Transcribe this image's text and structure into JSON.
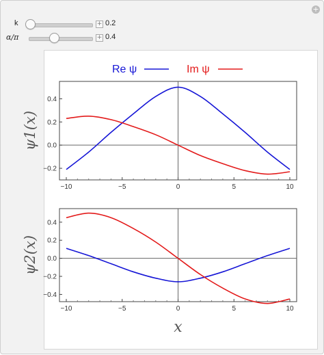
{
  "controls": [
    {
      "label": "k",
      "value": "0.2",
      "fraction": 0.0
    },
    {
      "label": "α/π",
      "value": "0.4",
      "fraction": 0.4
    }
  ],
  "legend": [
    {
      "label": "Re ψ",
      "color": "#1515d6"
    },
    {
      "label": "Im ψ",
      "color": "#e31a1a"
    }
  ],
  "colors": {
    "re": "#1515d6",
    "im": "#e31a1a",
    "axis": "#333333"
  },
  "chart_data": [
    {
      "type": "line",
      "ylabel": "ψ1(x)",
      "xlabel": "",
      "xlim": [
        -10,
        10
      ],
      "ylim": [
        -0.3,
        0.55
      ],
      "xticks": [
        "−10",
        "−5",
        "0",
        "5",
        "10"
      ],
      "yticks": [
        "−0.2",
        "0.0",
        "0.2",
        "0.4"
      ],
      "ytick_values": [
        -0.2,
        0.0,
        0.2,
        0.4
      ],
      "grid": false,
      "series": [
        {
          "name": "Re ψ",
          "x": [
            -10,
            -8,
            -6,
            -4,
            -2,
            0,
            2,
            4,
            6,
            8,
            10
          ],
          "values": [
            -0.21,
            -0.06,
            0.11,
            0.27,
            0.42,
            0.5,
            0.42,
            0.27,
            0.11,
            -0.06,
            -0.21
          ]
        },
        {
          "name": "Im ψ",
          "x": [
            -10,
            -8,
            -6,
            -4,
            -2,
            0,
            2,
            4,
            6,
            8,
            10
          ],
          "values": [
            0.23,
            0.25,
            0.22,
            0.16,
            0.09,
            0.0,
            -0.09,
            -0.16,
            -0.22,
            -0.25,
            -0.23
          ]
        }
      ]
    },
    {
      "type": "line",
      "ylabel": "ψ2(x)",
      "xlabel": "x",
      "xlim": [
        -10,
        10
      ],
      "ylim": [
        -0.48,
        0.55
      ],
      "xticks": [
        "−10",
        "−5",
        "0",
        "5",
        "10"
      ],
      "yticks": [
        "−0.4",
        "−0.2",
        "0.0",
        "0.2",
        "0.4"
      ],
      "ytick_values": [
        -0.4,
        -0.2,
        0.0,
        0.2,
        0.4
      ],
      "grid": false,
      "series": [
        {
          "name": "Re ψ",
          "x": [
            -10,
            -8,
            -6,
            -4,
            -2,
            0,
            2,
            4,
            6,
            8,
            10
          ],
          "values": [
            0.11,
            0.03,
            -0.06,
            -0.15,
            -0.22,
            -0.26,
            -0.22,
            -0.15,
            -0.06,
            0.03,
            0.11
          ]
        },
        {
          "name": "Im ψ",
          "x": [
            -10,
            -8,
            -6,
            -4,
            -2,
            0,
            2,
            4,
            6,
            8,
            10
          ],
          "values": [
            0.45,
            0.5,
            0.45,
            0.33,
            0.18,
            0.0,
            -0.18,
            -0.33,
            -0.45,
            -0.5,
            -0.45
          ]
        }
      ]
    }
  ]
}
